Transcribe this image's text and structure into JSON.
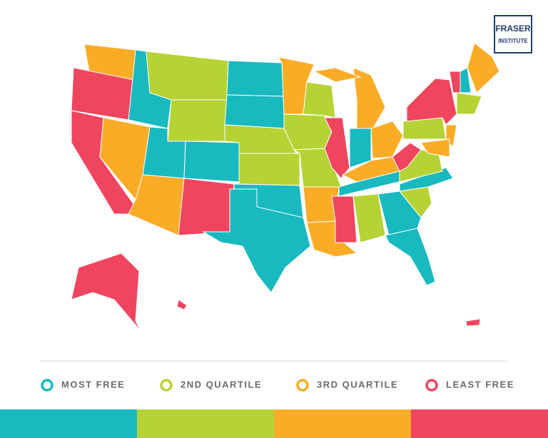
{
  "logo": {
    "line1": "FRASER",
    "line2": "INSTITUTE"
  },
  "legend": [
    {
      "label": "MOST FREE",
      "color": "#19b9c0"
    },
    {
      "label": "2ND QUARTILE",
      "color": "#b5d334"
    },
    {
      "label": "3RD QUARTILE",
      "color": "#fbac26"
    },
    {
      "label": "LEAST FREE",
      "color": "#f0455f"
    }
  ]
}
